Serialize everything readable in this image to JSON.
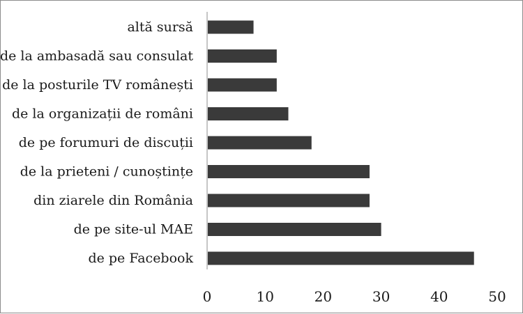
{
  "chart_data": {
    "type": "bar",
    "orientation": "horizontal",
    "title": "",
    "xlabel": "",
    "ylabel": "",
    "categories": [
      "altă sursă",
      "de la ambasadă sau consulat",
      "de la posturile TV românești",
      "de la organizații de români",
      "de pe forumuri de discuții",
      "de la prieteni / cunoștințe",
      "din ziarele din România",
      "de pe site-ul MAE",
      "de pe Facebook"
    ],
    "values": [
      8,
      12,
      12,
      14,
      18,
      28,
      28,
      30,
      46
    ],
    "xlim": [
      0,
      50
    ],
    "xticks": [
      "0",
      "10",
      "20",
      "30",
      "40",
      "50"
    ],
    "grid": false,
    "legend": "none",
    "bar_color": "#3a3a3a"
  }
}
